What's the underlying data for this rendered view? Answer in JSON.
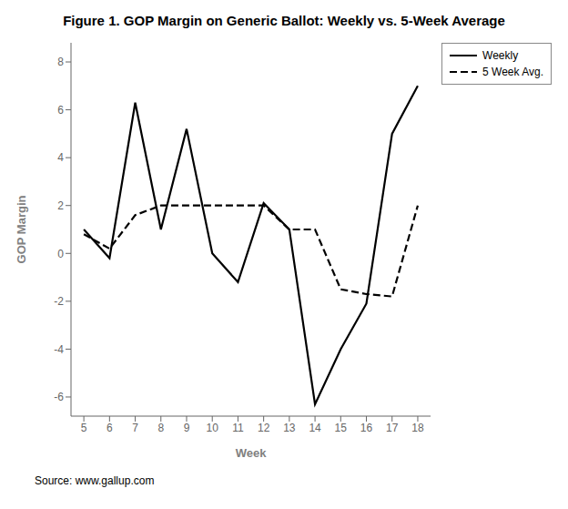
{
  "chart_data": {
    "type": "line",
    "title": "Figure 1. GOP Margin on Generic Ballot: Weekly vs. 5-Week Average",
    "x_label": "Week",
    "y_label": "GOP Margin",
    "annotations": [
      "Source: www.gallup.com"
    ],
    "x": [
      5,
      6,
      7,
      8,
      9,
      10,
      11,
      12,
      13,
      14,
      15,
      16,
      17,
      18
    ],
    "series": [
      {
        "name": "Weekly",
        "color": "#000000",
        "line_style": "solid",
        "values": [
          1.0,
          -0.2,
          6.3,
          1.0,
          5.2,
          0.0,
          -1.2,
          2.1,
          1.0,
          -6.3,
          -4.0,
          -2.1,
          5.0,
          7.0
        ]
      },
      {
        "name": "5 Week Avg.",
        "color": "#000000",
        "line_style": "dashed",
        "values": [
          0.8,
          0.2,
          1.6,
          2.0,
          2.0,
          2.0,
          2.0,
          2.0,
          1.0,
          1.0,
          -1.5,
          -1.7,
          -1.8,
          2.0
        ]
      }
    ],
    "xlim": [
      4.5,
      18.5
    ],
    "ylim": [
      -6.8,
      8.8
    ],
    "xticks": [
      5,
      6,
      7,
      8,
      9,
      10,
      11,
      12,
      13,
      14,
      15,
      16,
      17,
      18
    ],
    "yticks": [
      -6,
      -4,
      -2,
      0,
      2,
      4,
      6,
      8
    ],
    "grid": false,
    "legend": "right"
  }
}
